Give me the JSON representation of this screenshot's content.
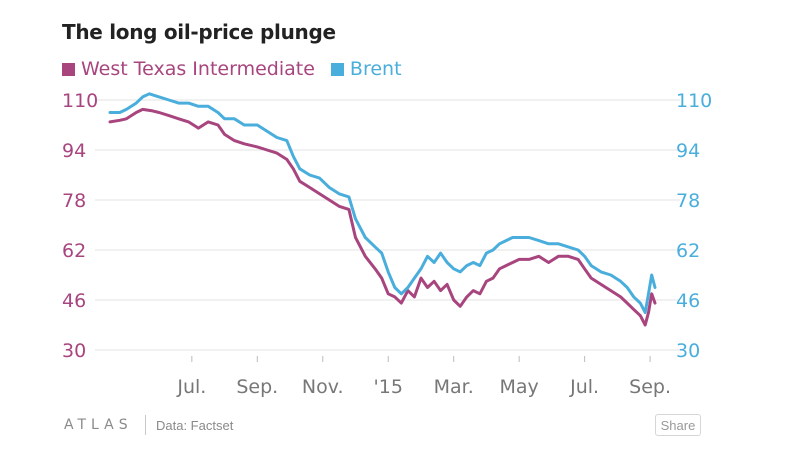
{
  "chart_data": {
    "type": "line",
    "title": "The long oil-price plunge",
    "xlabel": "",
    "ylabel": "",
    "ylim": [
      30,
      110
    ],
    "yticks": [
      30,
      46,
      62,
      78,
      94,
      110
    ],
    "xticks": [
      {
        "label": "Jul.",
        "t": 1.0
      },
      {
        "label": "Sep.",
        "t": 3.0
      },
      {
        "label": "Nov.",
        "t": 5.0
      },
      {
        "label": "'15",
        "t": 7.0
      },
      {
        "label": "Mar.",
        "t": 9.0
      },
      {
        "label": "May",
        "t": 11.0
      },
      {
        "label": "Jul.",
        "t": 13.0
      },
      {
        "label": "Sep.",
        "t": 15.0
      }
    ],
    "series": [
      {
        "name": "West Texas Intermediate",
        "color": "#a8457f",
        "axis": "left",
        "points": [
          [
            -1.5,
            103
          ],
          [
            -1.2,
            103.5
          ],
          [
            -1.0,
            104
          ],
          [
            -0.7,
            106
          ],
          [
            -0.5,
            107
          ],
          [
            -0.2,
            106.5
          ],
          [
            0.0,
            106
          ],
          [
            0.3,
            105
          ],
          [
            0.6,
            104
          ],
          [
            0.9,
            103
          ],
          [
            1.2,
            101
          ],
          [
            1.5,
            103
          ],
          [
            1.8,
            102
          ],
          [
            2.0,
            99
          ],
          [
            2.3,
            97
          ],
          [
            2.6,
            96
          ],
          [
            3.0,
            95
          ],
          [
            3.3,
            94
          ],
          [
            3.6,
            93
          ],
          [
            3.9,
            91
          ],
          [
            4.1,
            88
          ],
          [
            4.3,
            84
          ],
          [
            4.6,
            82
          ],
          [
            4.9,
            80
          ],
          [
            5.2,
            78
          ],
          [
            5.5,
            76
          ],
          [
            5.8,
            75
          ],
          [
            6.0,
            66
          ],
          [
            6.3,
            60
          ],
          [
            6.6,
            56
          ],
          [
            6.8,
            53
          ],
          [
            7.0,
            48
          ],
          [
            7.2,
            47
          ],
          [
            7.4,
            45
          ],
          [
            7.6,
            49
          ],
          [
            7.8,
            47
          ],
          [
            8.0,
            53
          ],
          [
            8.2,
            50
          ],
          [
            8.4,
            52
          ],
          [
            8.6,
            49
          ],
          [
            8.8,
            51
          ],
          [
            9.0,
            46
          ],
          [
            9.2,
            44
          ],
          [
            9.4,
            47
          ],
          [
            9.6,
            49
          ],
          [
            9.8,
            48
          ],
          [
            10.0,
            52
          ],
          [
            10.2,
            53
          ],
          [
            10.4,
            56
          ],
          [
            10.6,
            57
          ],
          [
            10.8,
            58
          ],
          [
            11.0,
            59
          ],
          [
            11.3,
            59
          ],
          [
            11.6,
            60
          ],
          [
            11.9,
            58
          ],
          [
            12.2,
            60
          ],
          [
            12.5,
            60
          ],
          [
            12.8,
            59
          ],
          [
            13.0,
            56
          ],
          [
            13.2,
            53
          ],
          [
            13.5,
            51
          ],
          [
            13.8,
            49
          ],
          [
            14.1,
            47
          ],
          [
            14.3,
            45
          ],
          [
            14.5,
            43
          ],
          [
            14.7,
            41
          ],
          [
            14.85,
            38
          ],
          [
            14.95,
            42
          ],
          [
            15.05,
            48
          ],
          [
            15.15,
            45
          ]
        ]
      },
      {
        "name": "Brent",
        "color": "#4aaedc",
        "axis": "right",
        "points": [
          [
            -1.5,
            106
          ],
          [
            -1.2,
            106
          ],
          [
            -1.0,
            107
          ],
          [
            -0.7,
            109
          ],
          [
            -0.5,
            111
          ],
          [
            -0.3,
            112
          ],
          [
            0.0,
            111
          ],
          [
            0.3,
            110
          ],
          [
            0.6,
            109
          ],
          [
            0.9,
            109
          ],
          [
            1.2,
            108
          ],
          [
            1.5,
            108
          ],
          [
            1.8,
            106
          ],
          [
            2.0,
            104
          ],
          [
            2.3,
            104
          ],
          [
            2.6,
            102
          ],
          [
            3.0,
            102
          ],
          [
            3.3,
            100
          ],
          [
            3.6,
            98
          ],
          [
            3.9,
            97
          ],
          [
            4.1,
            92
          ],
          [
            4.3,
            88
          ],
          [
            4.6,
            86
          ],
          [
            4.9,
            85
          ],
          [
            5.2,
            82
          ],
          [
            5.5,
            80
          ],
          [
            5.8,
            79
          ],
          [
            6.0,
            72
          ],
          [
            6.3,
            66
          ],
          [
            6.6,
            63
          ],
          [
            6.8,
            61
          ],
          [
            7.0,
            55
          ],
          [
            7.2,
            50
          ],
          [
            7.4,
            48
          ],
          [
            7.6,
            50
          ],
          [
            7.8,
            53
          ],
          [
            8.0,
            56
          ],
          [
            8.2,
            60
          ],
          [
            8.4,
            58
          ],
          [
            8.6,
            61
          ],
          [
            8.8,
            58
          ],
          [
            9.0,
            56
          ],
          [
            9.2,
            55
          ],
          [
            9.4,
            57
          ],
          [
            9.6,
            58
          ],
          [
            9.8,
            57
          ],
          [
            10.0,
            61
          ],
          [
            10.2,
            62
          ],
          [
            10.4,
            64
          ],
          [
            10.6,
            65
          ],
          [
            10.8,
            66
          ],
          [
            11.0,
            66
          ],
          [
            11.3,
            66
          ],
          [
            11.6,
            65
          ],
          [
            11.9,
            64
          ],
          [
            12.2,
            64
          ],
          [
            12.5,
            63
          ],
          [
            12.8,
            62
          ],
          [
            13.0,
            60
          ],
          [
            13.2,
            57
          ],
          [
            13.5,
            55
          ],
          [
            13.8,
            54
          ],
          [
            14.1,
            52
          ],
          [
            14.3,
            50
          ],
          [
            14.5,
            47
          ],
          [
            14.7,
            45
          ],
          [
            14.85,
            42
          ],
          [
            14.95,
            48
          ],
          [
            15.05,
            54
          ],
          [
            15.15,
            50
          ]
        ]
      }
    ]
  },
  "legend": {
    "wti_label": "West Texas Intermediate",
    "brent_label": "Brent",
    "wti_color": "#a8457f",
    "brent_color": "#4aaedc"
  },
  "footer": {
    "logo": "ATLAS",
    "source": "Data: Factset",
    "share_label": "Share"
  }
}
